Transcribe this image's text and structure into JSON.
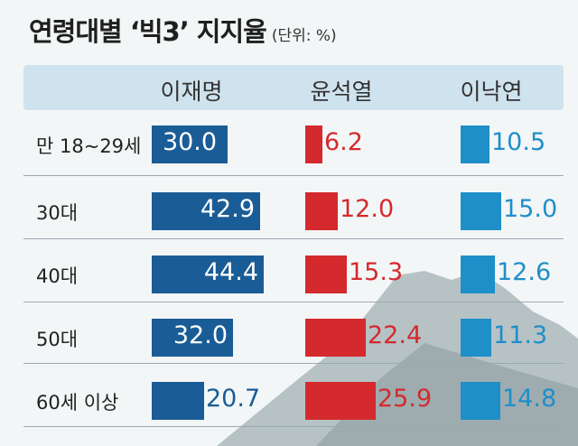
{
  "title": "연령대별 ‘빅3’ 지지율",
  "unit": "(단위: %)",
  "colors": {
    "lee_jm": "#1a5c96",
    "yoon": "#d42a2d",
    "lee_ny": "#1e8fc8"
  },
  "chart_data": {
    "type": "bar",
    "categories": [
      "만 18~29세",
      "30대",
      "40대",
      "50대",
      "60세 이상"
    ],
    "series": [
      {
        "name": "이재명",
        "values": [
          "30.0",
          "42.9",
          "44.4",
          "32.0",
          "20.7"
        ]
      },
      {
        "name": "윤석열",
        "values": [
          "6.2",
          "12.0",
          "15.3",
          "22.4",
          "25.9"
        ]
      },
      {
        "name": "이낙연",
        "values": [
          "10.5",
          "15.0",
          "12.6",
          "11.3",
          "14.8"
        ]
      }
    ]
  }
}
